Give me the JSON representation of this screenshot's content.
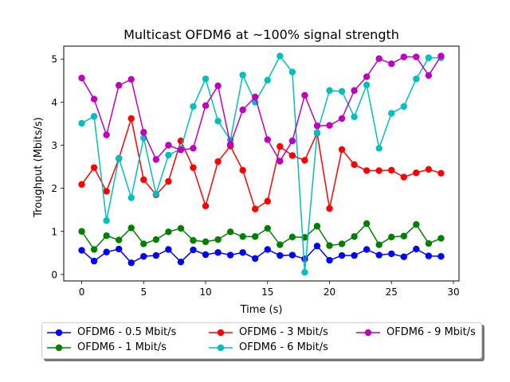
{
  "chart_data": {
    "type": "line",
    "title": "Multicast OFDM6 at ~100% signal strength",
    "xlabel": "Time (s)",
    "ylabel": "Troughput (Mbits/s)",
    "xlim": [
      -1.45,
      30.45
    ],
    "ylim": [
      -0.15,
      5.3
    ],
    "xticks": [
      0,
      5,
      10,
      15,
      20,
      25,
      30
    ],
    "yticks": [
      0,
      1,
      2,
      3,
      4,
      5
    ],
    "grid": false,
    "legend_position": "below",
    "x": [
      0,
      1,
      2,
      3,
      4,
      5,
      6,
      7,
      8,
      9,
      10,
      11,
      12,
      13,
      14,
      15,
      16,
      17,
      18,
      19,
      20,
      21,
      22,
      23,
      24,
      25,
      26,
      27,
      28,
      29
    ],
    "series": [
      {
        "name": "OFDM6 - 0.5 Mbit/s",
        "color": "#0000ff",
        "values": [
          0.56,
          0.31,
          0.52,
          0.59,
          0.27,
          0.42,
          0.44,
          0.58,
          0.29,
          0.57,
          0.46,
          0.51,
          0.45,
          0.51,
          0.37,
          0.58,
          0.44,
          0.45,
          0.36,
          0.66,
          0.33,
          0.44,
          0.44,
          0.58,
          0.45,
          0.48,
          0.41,
          0.59,
          0.43,
          0.42
        ]
      },
      {
        "name": "OFDM6 - 1 Mbit/s",
        "color": "#008000",
        "values": [
          1.0,
          0.58,
          0.9,
          0.8,
          1.08,
          0.71,
          0.81,
          0.99,
          1.07,
          0.79,
          0.76,
          0.81,
          0.99,
          0.88,
          0.88,
          1.07,
          0.69,
          0.87,
          0.86,
          1.12,
          0.67,
          0.71,
          0.88,
          1.18,
          0.69,
          0.87,
          0.89,
          1.16,
          0.72,
          0.84
        ]
      },
      {
        "name": "OFDM6 - 3 Mbit/s",
        "color": "#ff0000",
        "values": [
          2.09,
          2.48,
          1.93,
          2.69,
          3.62,
          2.2,
          1.85,
          2.16,
          3.1,
          2.48,
          1.59,
          2.62,
          2.98,
          2.42,
          1.52,
          1.7,
          2.97,
          2.76,
          2.65,
          3.28,
          1.53,
          2.9,
          2.55,
          2.41,
          2.41,
          2.42,
          2.26,
          2.36,
          2.44,
          2.35
        ]
      },
      {
        "name": "OFDM6 - 6 Mbit/s",
        "color": "#00bfbf",
        "values": [
          3.51,
          3.67,
          1.25,
          2.7,
          1.78,
          3.17,
          1.87,
          2.77,
          2.92,
          3.9,
          4.54,
          3.56,
          3.12,
          4.63,
          4.0,
          4.51,
          5.07,
          4.7,
          0.05,
          3.29,
          4.27,
          4.25,
          3.66,
          4.4,
          2.93,
          3.74,
          3.9,
          4.54,
          5.03,
          5.03
        ]
      },
      {
        "name": "OFDM6 - 9 Mbit/s",
        "color": "#bf00bf",
        "values": [
          4.56,
          4.07,
          3.24,
          4.39,
          4.53,
          3.3,
          2.67,
          3.0,
          2.89,
          2.93,
          3.92,
          4.38,
          3.02,
          3.82,
          4.12,
          3.13,
          2.63,
          3.1,
          4.16,
          3.45,
          3.46,
          3.62,
          4.27,
          4.59,
          5.01,
          4.89,
          5.05,
          5.05,
          4.62,
          5.07
        ]
      }
    ]
  }
}
